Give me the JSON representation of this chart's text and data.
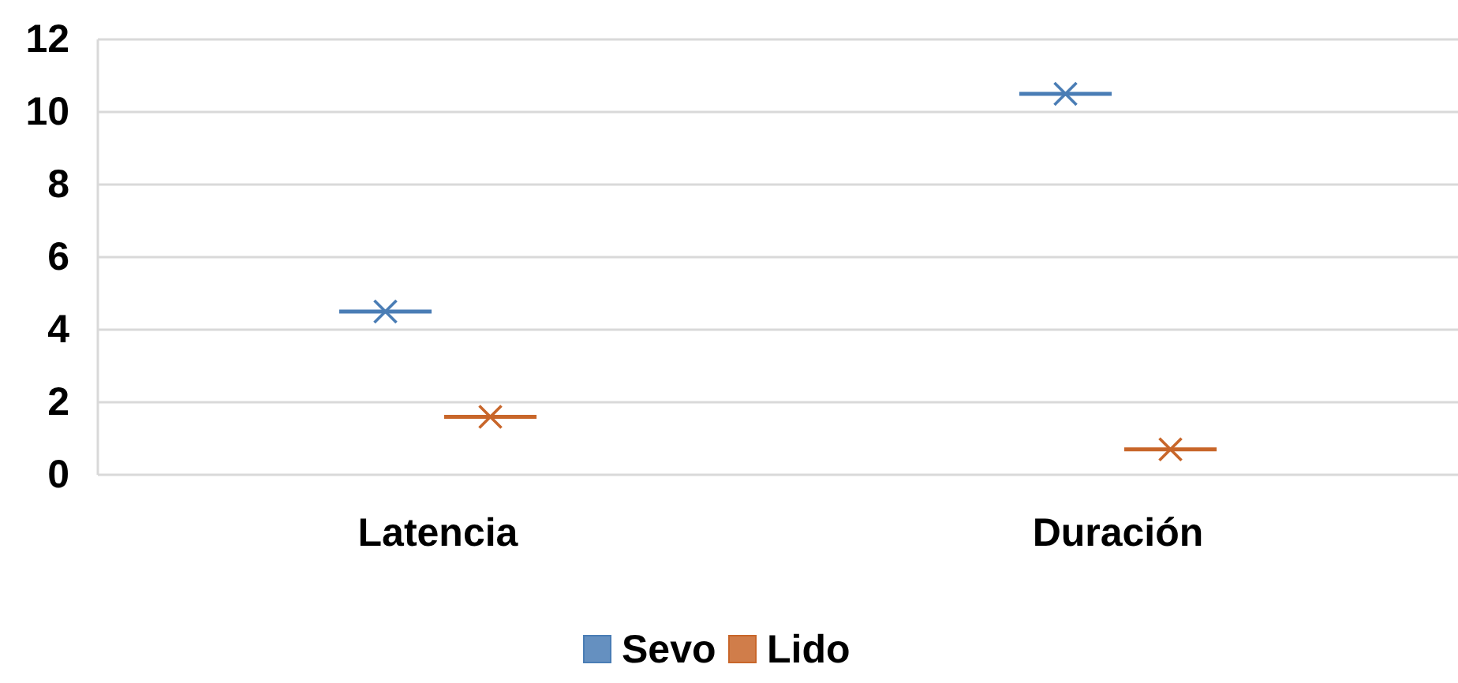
{
  "chart_data": {
    "type": "box",
    "categories": [
      "Latencia",
      "Duración"
    ],
    "series": [
      {
        "name": "Sevo",
        "color": "#4a7db5",
        "boxes": [
          {
            "low": 4.5,
            "q1": 4.5,
            "median": 4.5,
            "q3": 4.5,
            "high": 4.5,
            "mean": 4.5
          },
          {
            "low": 10.5,
            "q1": 10.5,
            "median": 10.5,
            "q3": 10.5,
            "high": 10.5,
            "mean": 10.5
          }
        ]
      },
      {
        "name": "Lido",
        "color": "#c8662a",
        "boxes": [
          {
            "low": 1.6,
            "q1": 1.6,
            "median": 1.6,
            "q3": 1.6,
            "high": 1.6,
            "mean": 1.6
          },
          {
            "low": 0.7,
            "q1": 0.7,
            "median": 0.7,
            "q3": 0.7,
            "high": 0.7,
            "mean": 0.7
          }
        ]
      }
    ],
    "ylim": [
      0,
      12
    ],
    "yticks": [
      0,
      2,
      4,
      6,
      8,
      10,
      12
    ],
    "grid": "y",
    "legend": "bottom",
    "marker": "cross"
  }
}
